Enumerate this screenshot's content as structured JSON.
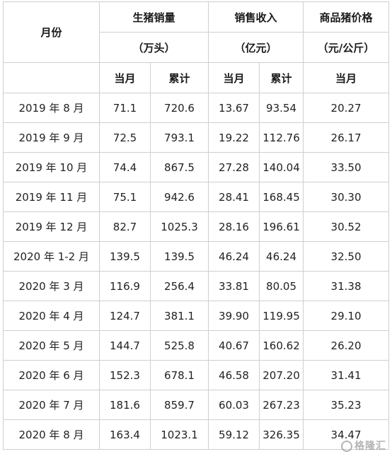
{
  "header": {
    "month": "月份",
    "hog_sales": "生猪销量",
    "hog_sales_unit": "（万头）",
    "revenue": "销售收入",
    "revenue_unit": "（亿元）",
    "price": "商品猪价格",
    "price_unit": "（元/公斤）",
    "current": "当月",
    "cumulative": "累计"
  },
  "rows": [
    {
      "month": "2019 年 8 月",
      "sales_m": "71.1",
      "sales_c": "720.6",
      "rev_m": "13.67",
      "rev_c": "93.54",
      "price": "20.27"
    },
    {
      "month": "2019 年 9 月",
      "sales_m": "72.5",
      "sales_c": "793.1",
      "rev_m": "19.22",
      "rev_c": "112.76",
      "price": "26.17"
    },
    {
      "month": "2019 年 10 月",
      "sales_m": "74.4",
      "sales_c": "867.5",
      "rev_m": "27.28",
      "rev_c": "140.04",
      "price": "33.50"
    },
    {
      "month": "2019 年 11 月",
      "sales_m": "75.1",
      "sales_c": "942.6",
      "rev_m": "28.41",
      "rev_c": "168.45",
      "price": "30.30"
    },
    {
      "month": "2019 年 12 月",
      "sales_m": "82.7",
      "sales_c": "1025.3",
      "rev_m": "28.16",
      "rev_c": "196.61",
      "price": "30.52"
    },
    {
      "month": "2020 年 1-2 月",
      "sales_m": "139.5",
      "sales_c": "139.5",
      "rev_m": "46.24",
      "rev_c": "46.24",
      "price": "32.50"
    },
    {
      "month": "2020 年 3 月",
      "sales_m": "116.9",
      "sales_c": "256.4",
      "rev_m": "33.81",
      "rev_c": "80.05",
      "price": "31.38"
    },
    {
      "month": "2020 年 4 月",
      "sales_m": "124.7",
      "sales_c": "381.1",
      "rev_m": "39.90",
      "rev_c": "119.95",
      "price": "29.10"
    },
    {
      "month": "2020 年 5 月",
      "sales_m": "144.7",
      "sales_c": "525.8",
      "rev_m": "40.67",
      "rev_c": "160.62",
      "price": "26.20"
    },
    {
      "month": "2020 年 6 月",
      "sales_m": "152.3",
      "sales_c": "678.1",
      "rev_m": "46.58",
      "rev_c": "207.20",
      "price": "31.41"
    },
    {
      "month": "2020 年 7 月",
      "sales_m": "181.6",
      "sales_c": "859.7",
      "rev_m": "60.03",
      "rev_c": "267.23",
      "price": "35.23"
    },
    {
      "month": "2020 年 8 月",
      "sales_m": "163.4",
      "sales_c": "1023.1",
      "rev_m": "59.12",
      "rev_c": "326.35",
      "price": "34.47"
    }
  ],
  "watermark": "格隆汇",
  "colors": {
    "border": "#cfcfcf",
    "text": "#222222",
    "watermark": "#787878"
  }
}
